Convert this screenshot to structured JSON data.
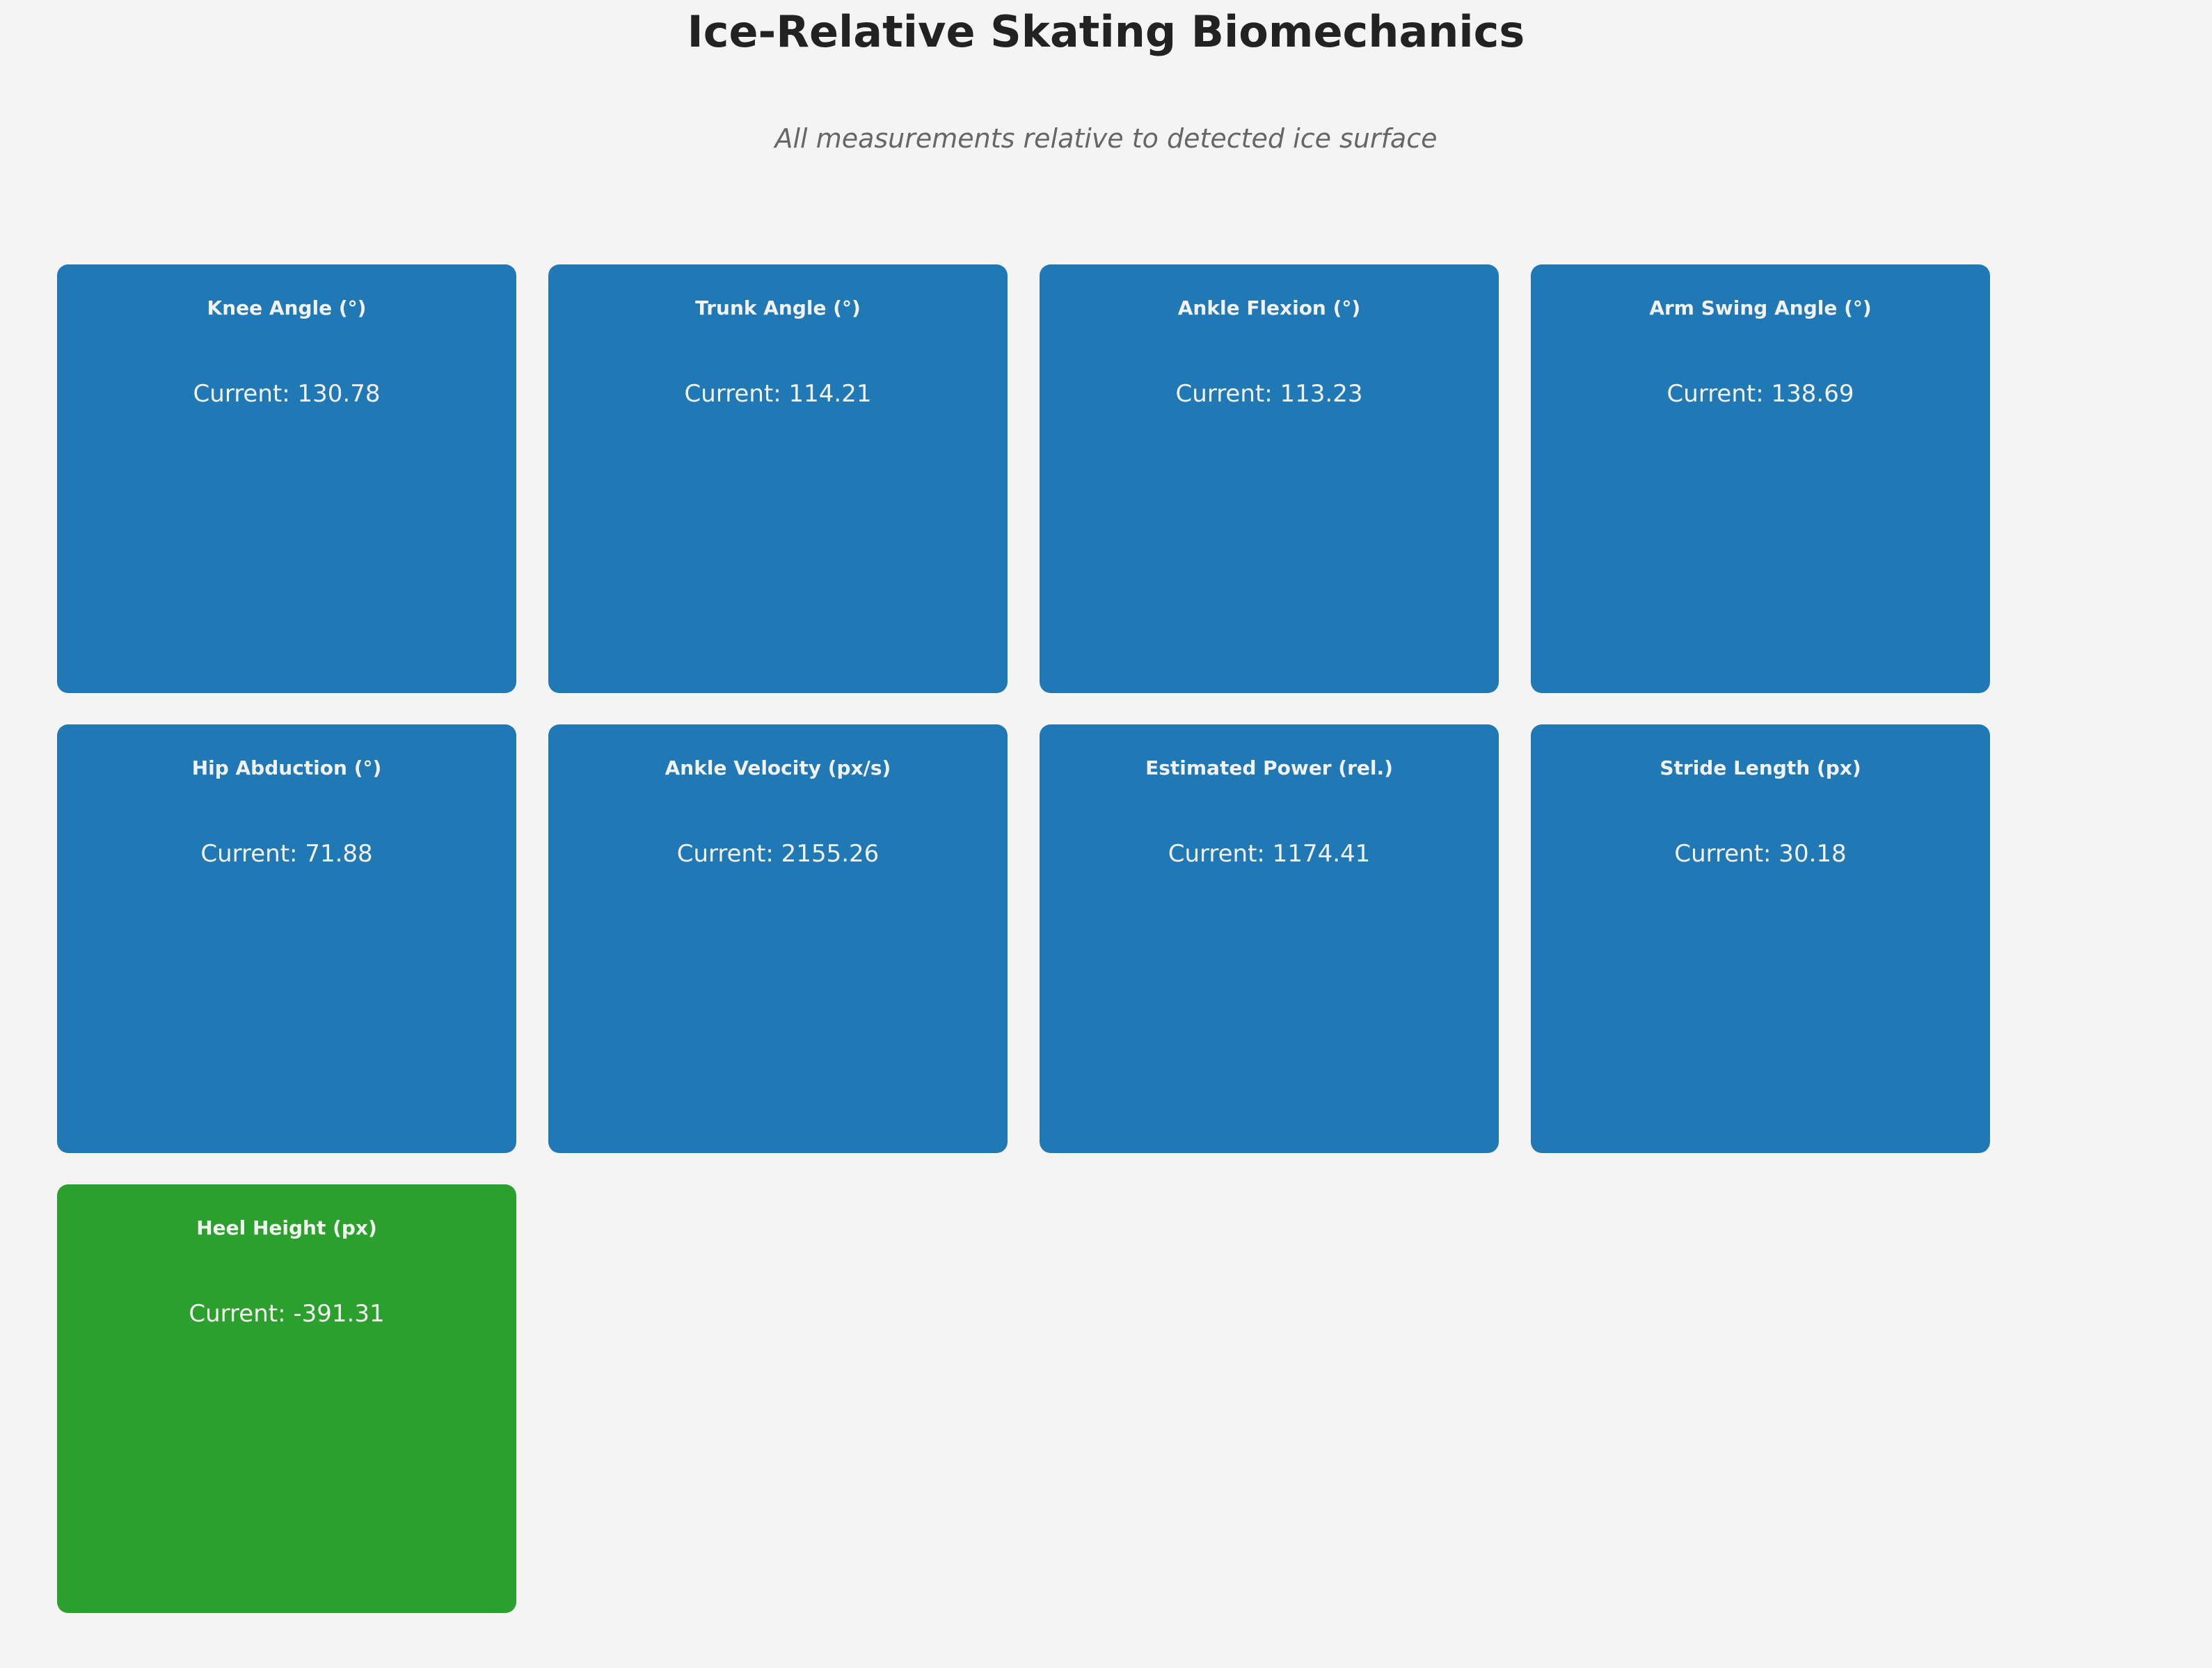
{
  "header": {
    "title": "Ice-Relative Skating Biomechanics",
    "subtitle": "All measurements relative to detected ice surface"
  },
  "colors": {
    "background": "#f4f4f4",
    "card_default": "#2078b4",
    "card_highlight": "#2ca02c"
  },
  "cards": [
    {
      "label": "Knee Angle (°)",
      "value": "Current: 130.78",
      "color": "#2078b4"
    },
    {
      "label": "Trunk Angle (°)",
      "value": "Current: 114.21",
      "color": "#2078b4"
    },
    {
      "label": "Ankle Flexion (°)",
      "value": "Current: 113.23",
      "color": "#2078b4"
    },
    {
      "label": "Arm Swing Angle (°)",
      "value": "Current: 138.69",
      "color": "#2078b4"
    },
    {
      "label": "Hip Abduction (°)",
      "value": "Current: 71.88",
      "color": "#2078b4"
    },
    {
      "label": "Ankle Velocity (px/s)",
      "value": "Current: 2155.26",
      "color": "#2078b4"
    },
    {
      "label": "Estimated Power (rel.)",
      "value": "Current: 1174.41",
      "color": "#2078b4"
    },
    {
      "label": "Stride Length (px)",
      "value": "Current: 30.18",
      "color": "#2078b4"
    },
    {
      "label": "Heel Height (px)",
      "value": "Current: -391.31",
      "color": "#2ca02c"
    }
  ]
}
